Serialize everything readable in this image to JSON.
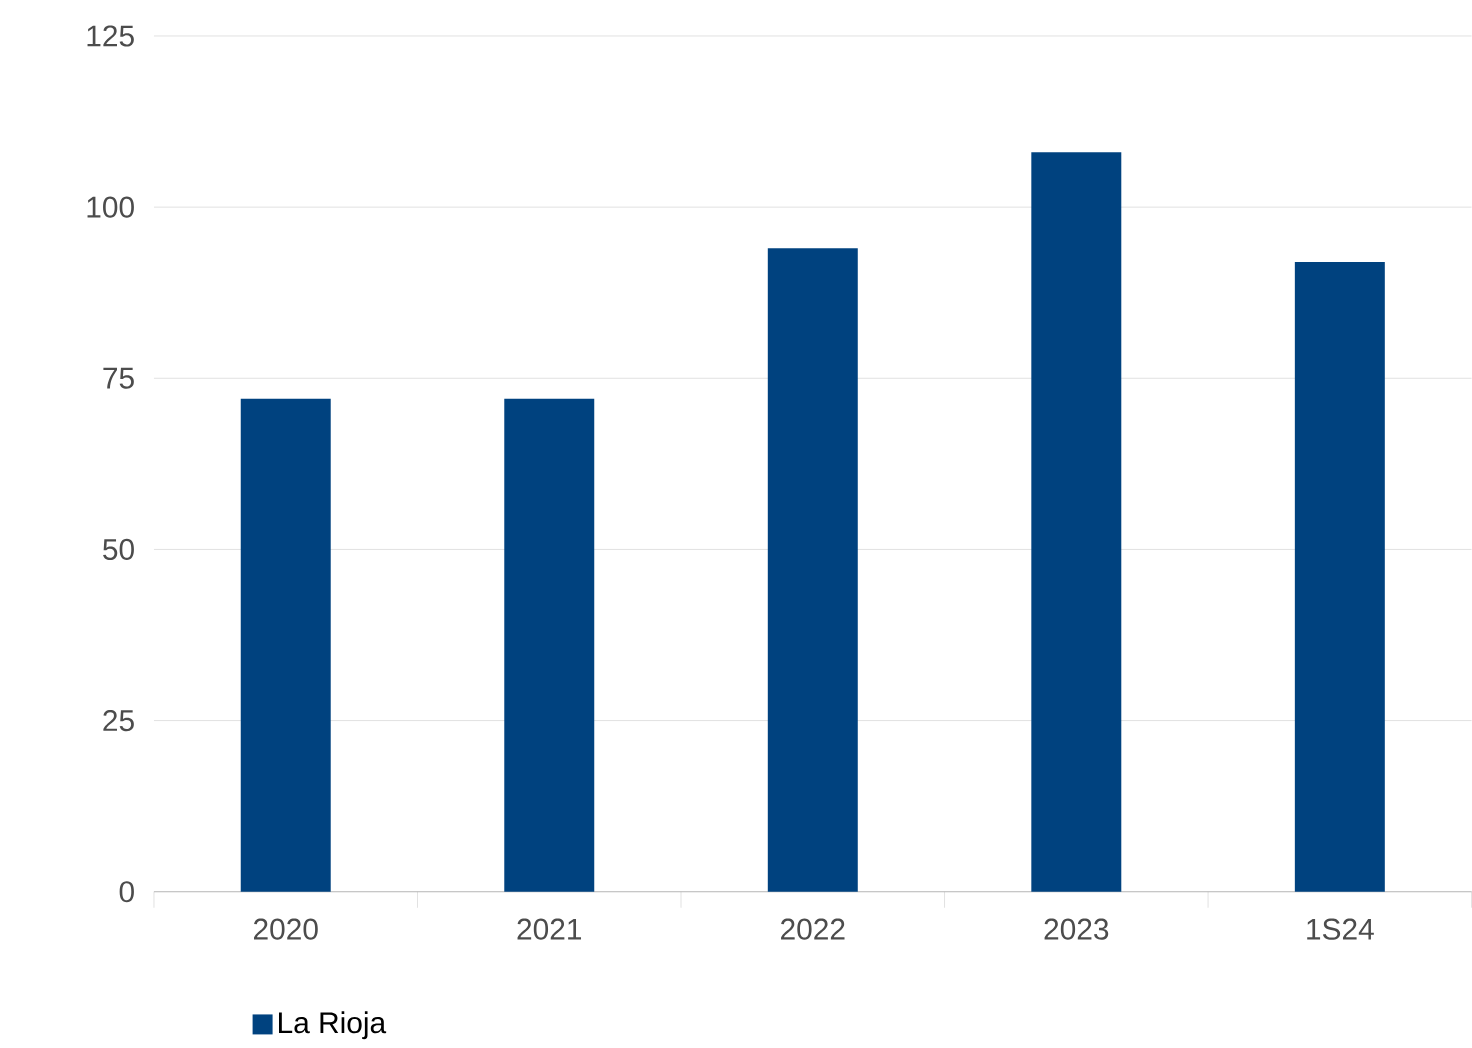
{
  "chart_data": {
    "type": "bar",
    "categories": [
      "2020",
      "2021",
      "2022",
      "2023",
      "1S24"
    ],
    "series": [
      {
        "name": "La Rioja",
        "color": "#00427f",
        "values": [
          72,
          72,
          94,
          108,
          92
        ]
      }
    ],
    "ylim": [
      0,
      125
    ],
    "yticks": [
      0,
      25,
      50,
      75,
      100,
      125
    ],
    "grid": "y",
    "legend": "bottom left"
  }
}
